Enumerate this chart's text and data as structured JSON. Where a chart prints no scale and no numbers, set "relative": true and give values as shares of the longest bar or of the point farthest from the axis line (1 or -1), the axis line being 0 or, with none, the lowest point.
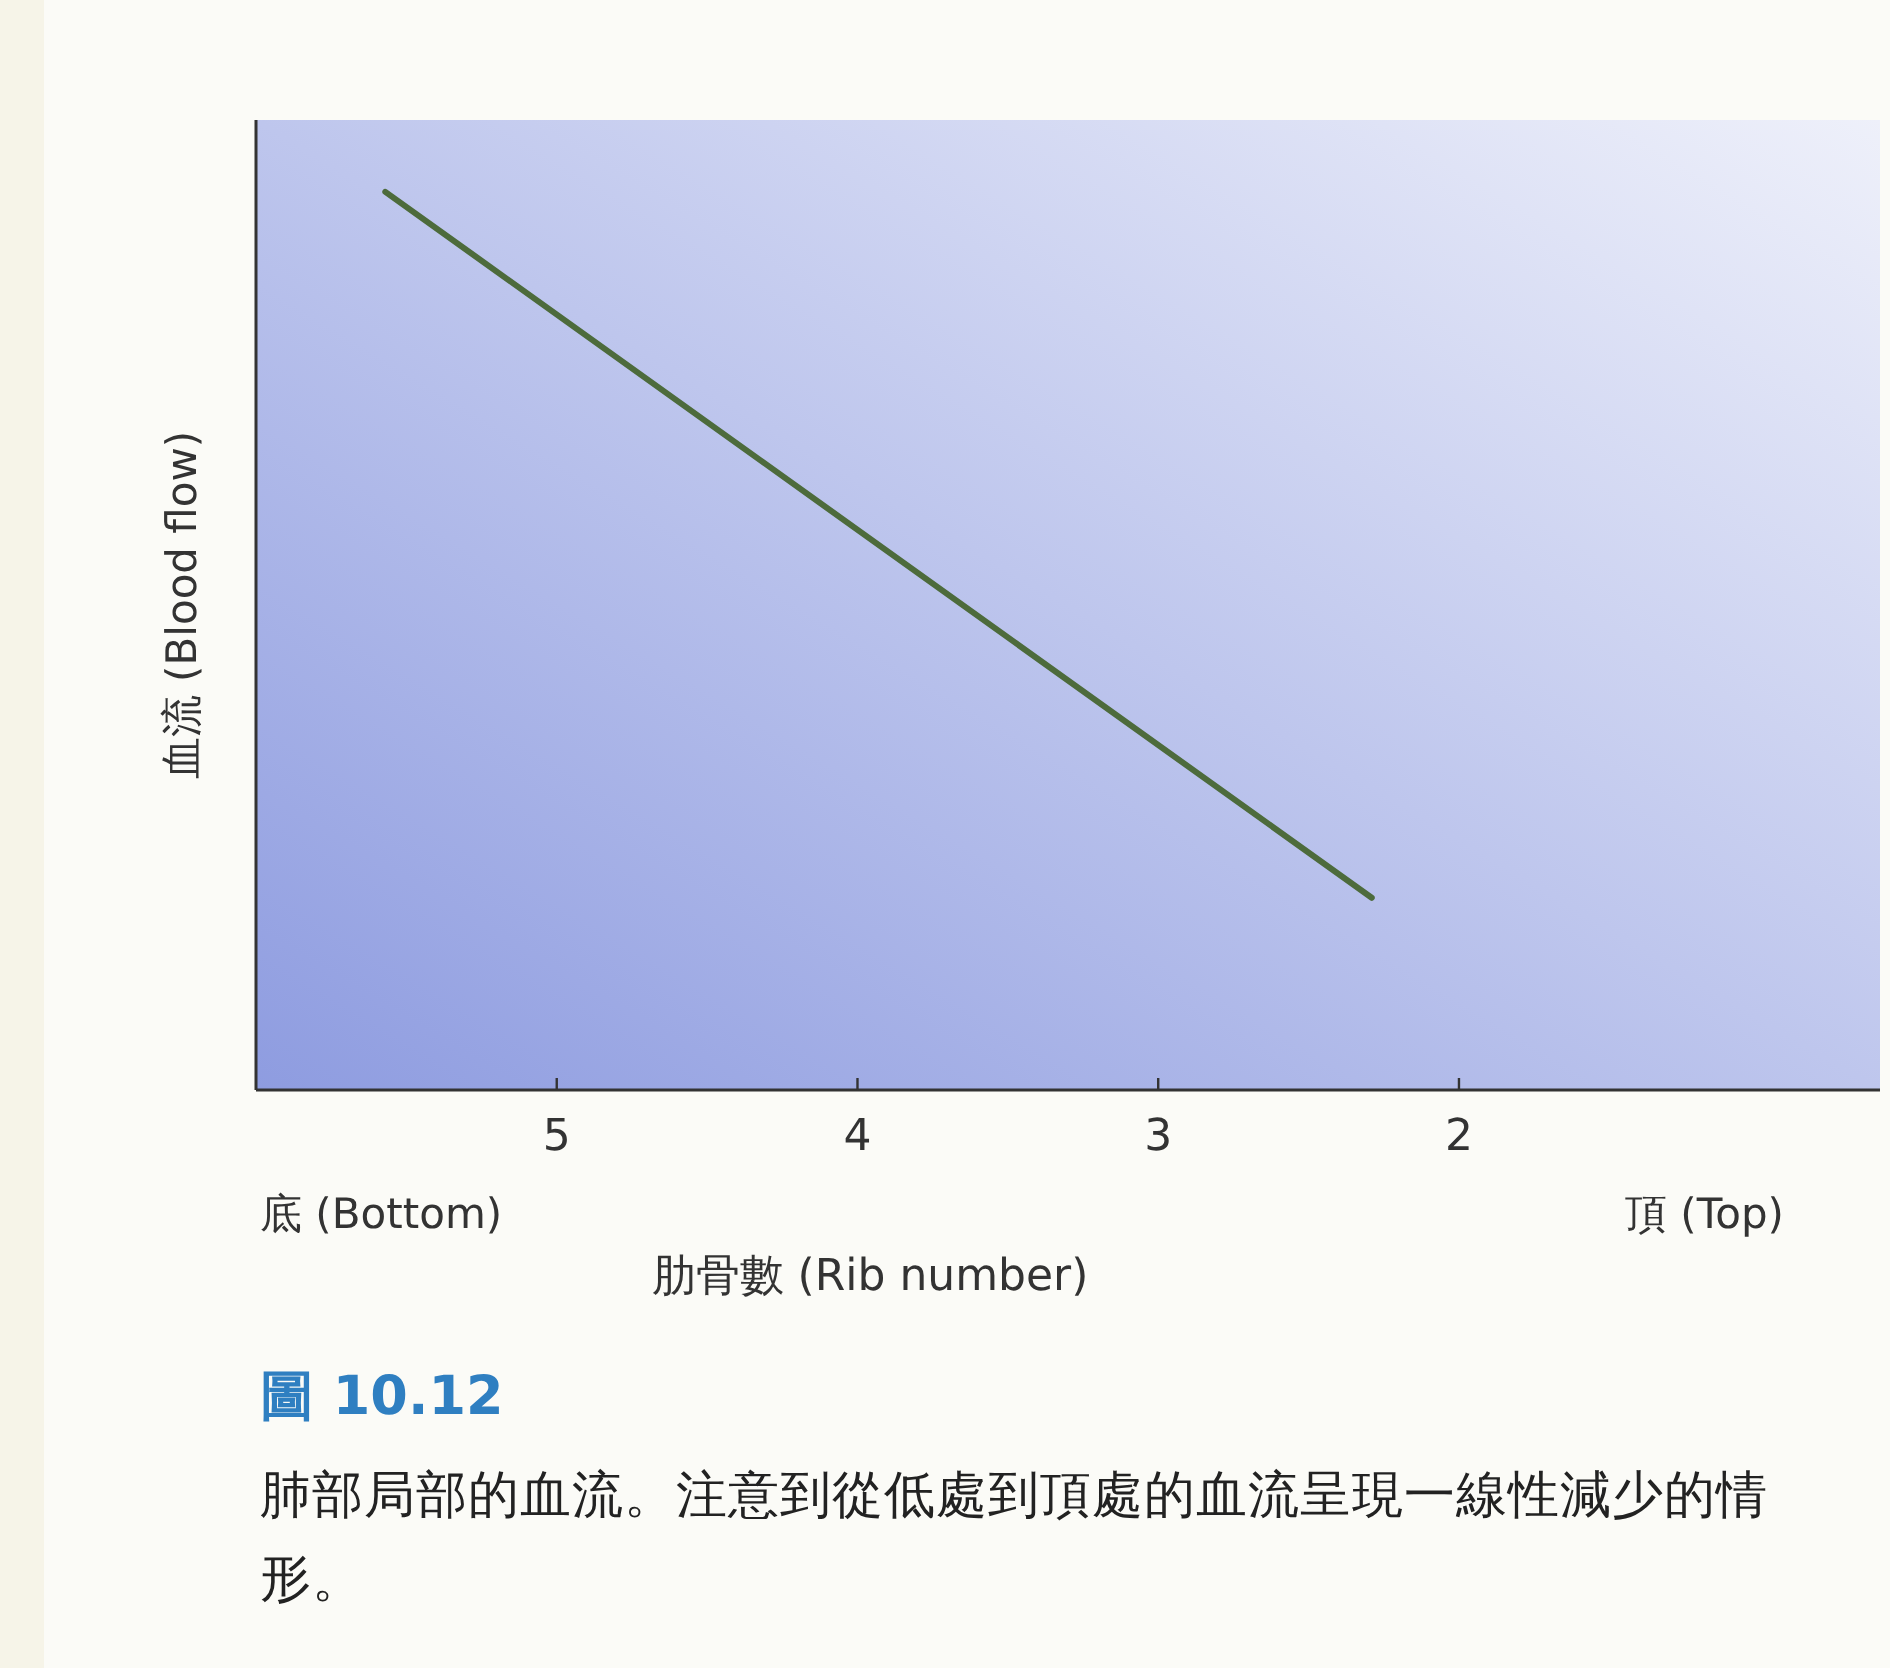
{
  "chart_data": {
    "type": "line",
    "title": "圖 10.12",
    "subtitle": "肺部局部的血流。注意到從低處到頂處的血流呈現一線性減少的情形。",
    "xlabel": "肋骨數 (Rib number)",
    "ylabel": "血流 (Blood flow)",
    "annotations": [
      "底 (Bottom)",
      "頂 (Top)"
    ],
    "relative": true,
    "xlim": [
      6,
      0.6
    ],
    "xticks": [
      5,
      4,
      3,
      2
    ],
    "series": [
      {
        "color": "#4d6b3c",
        "x": [
          5.57,
          2.29
        ],
        "values": [
          1,
          0.214
        ]
      }
    ],
    "marker": "none",
    "line_style": "solid"
  }
}
